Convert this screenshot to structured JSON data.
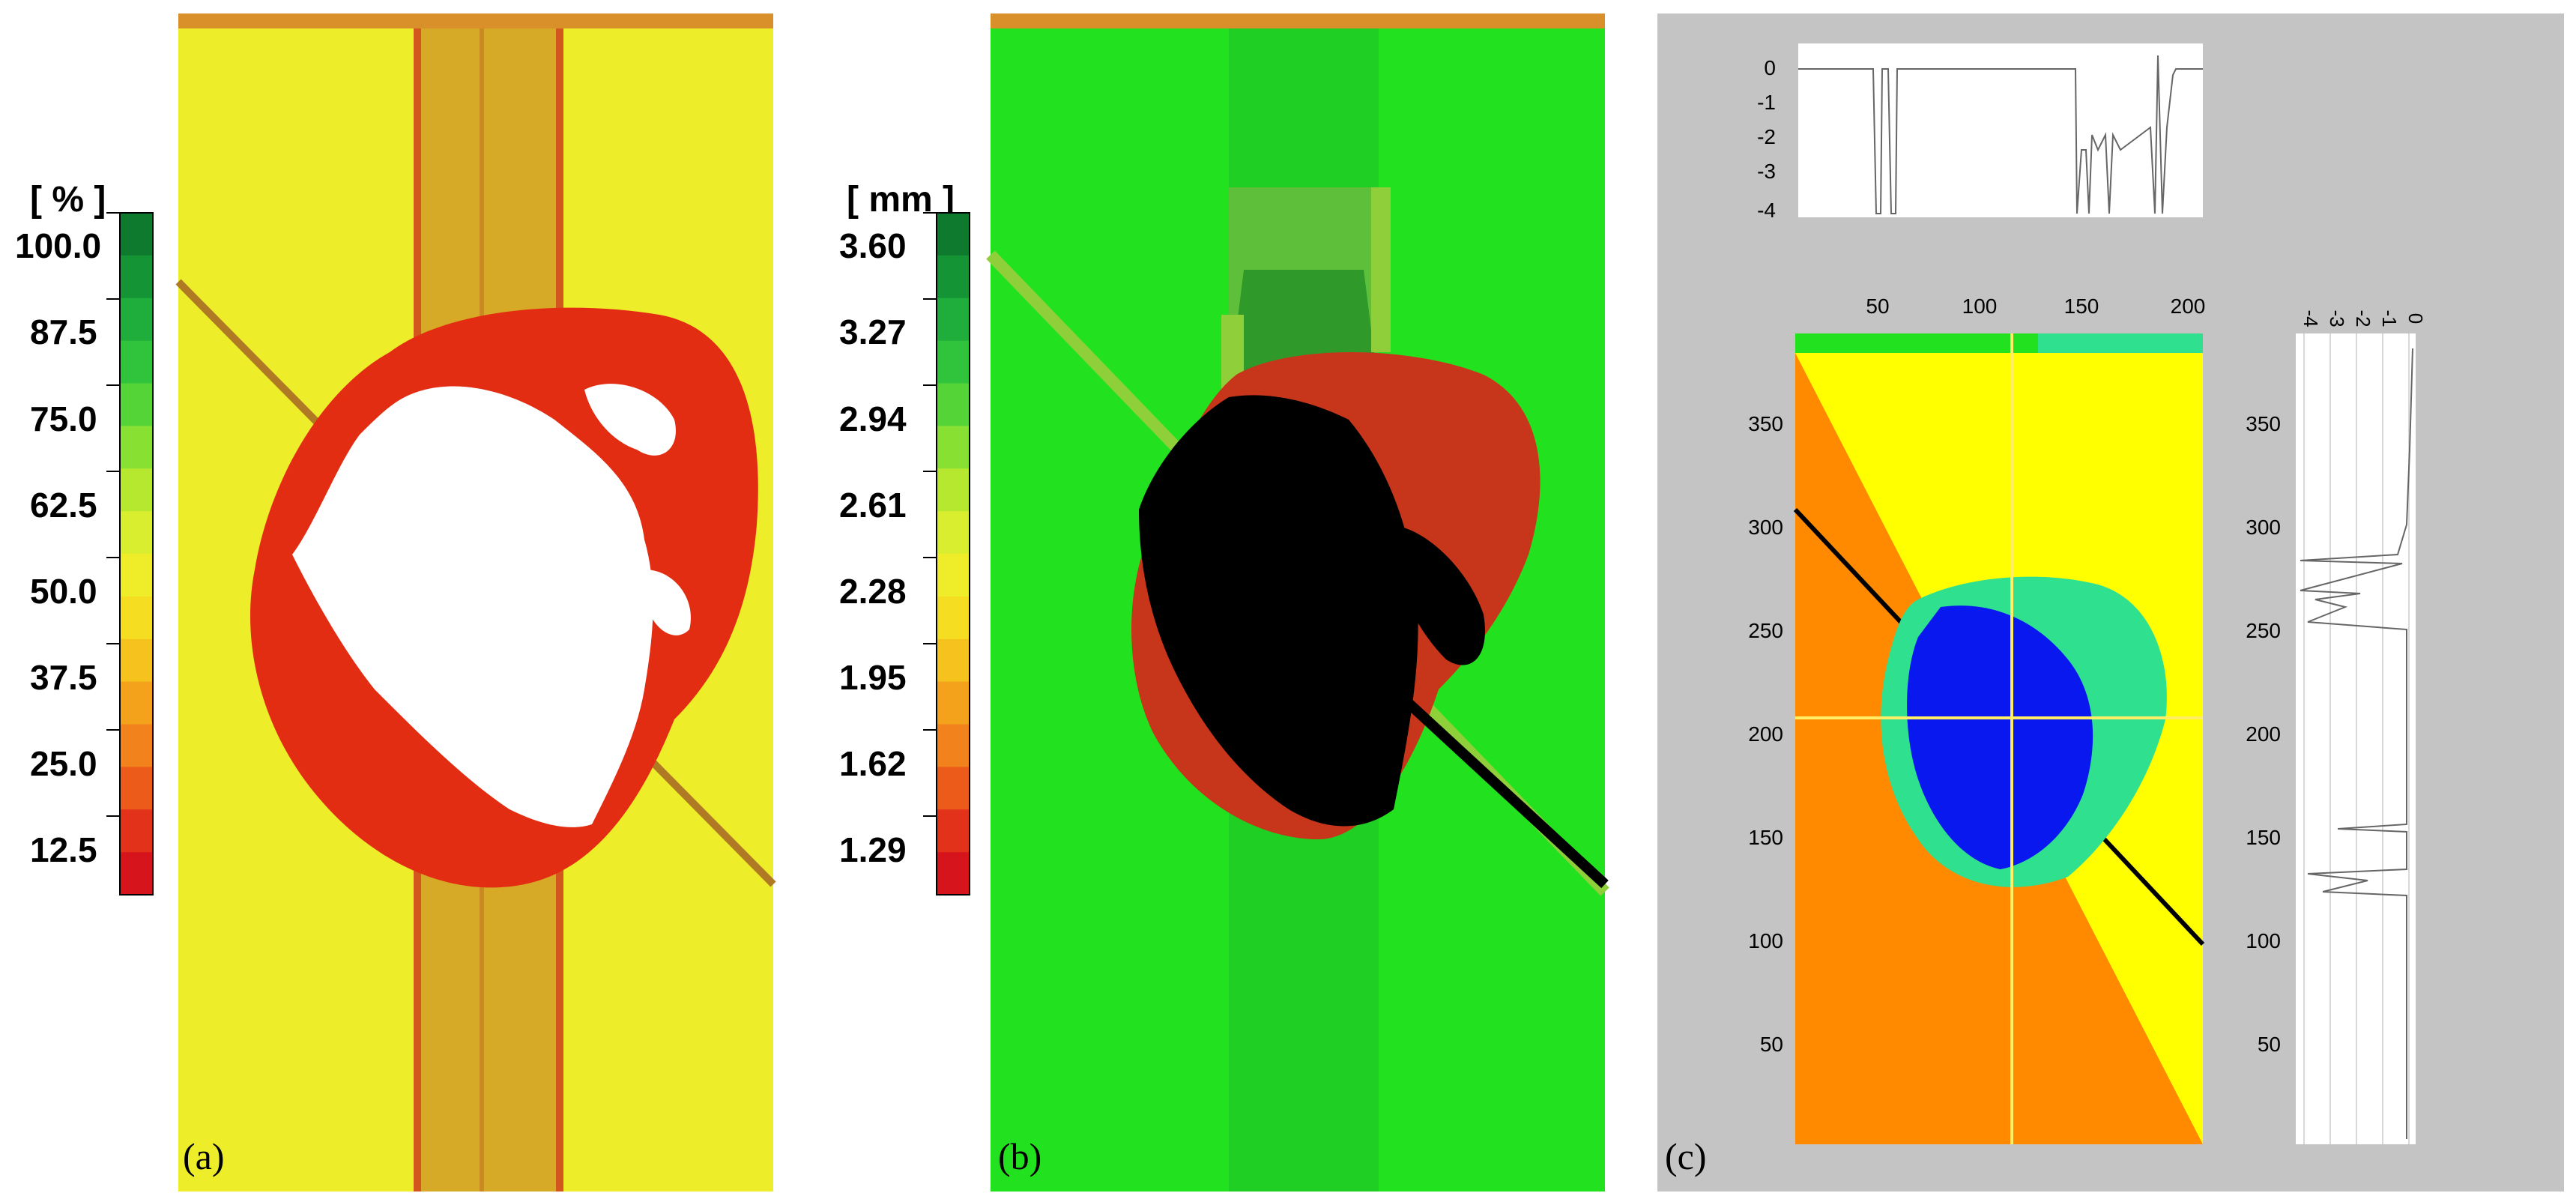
{
  "panels": {
    "a": {
      "label": "(a)",
      "unit": "[ % ]",
      "ticks": [
        "100.0",
        "87.5",
        "75.0",
        "62.5",
        "50.0",
        "37.5",
        "25.0",
        "12.5"
      ],
      "colors": {
        "background": "#eded2a",
        "band": "#d6a926",
        "damage": "#e32d12",
        "center": "#ffffff",
        "scale": [
          "#d6141b",
          "#e2321a",
          "#ec5b1a",
          "#f2821b",
          "#f4a11c",
          "#f6c21e",
          "#f5dd22",
          "#efed2a",
          "#d8ee2e",
          "#b6e830",
          "#88e032",
          "#55d437",
          "#2fc43b",
          "#1fad3c",
          "#159436",
          "#0d7a2d"
        ]
      }
    },
    "b": {
      "label": "(b)",
      "unit": "[ mm ]",
      "ticks": [
        "3.60",
        "3.27",
        "2.94",
        "2.61",
        "2.28",
        "1.95",
        "1.62",
        "1.29"
      ],
      "colors": {
        "background": "#22e21f",
        "band_light": "#8fd03a",
        "band_dark": "#2f9a2a",
        "damage": "#c7361a",
        "core": "#000000"
      }
    },
    "c": {
      "label": "(c)",
      "colors": {
        "panel_bg": "#c4c4c4",
        "orange": "#ff8a00",
        "yellow": "#ffff00",
        "teal": "#2fe08f",
        "blue": "#0a18f0",
        "crosshair": "#ffee66",
        "profile_line": "#666666"
      },
      "top_profile": {
        "y_ticks": [
          "0",
          "-1",
          "-2",
          "-3",
          "-4"
        ]
      },
      "main_map": {
        "x_ticks": [
          "50",
          "100",
          "150",
          "200"
        ],
        "y_ticks": [
          "350",
          "300",
          "250",
          "200",
          "150",
          "100",
          "50"
        ]
      },
      "side_profile": {
        "x_ticks": [
          "-4",
          "-3",
          "-2",
          "-1",
          "0"
        ],
        "y_ticks": [
          "350",
          "300",
          "250",
          "200",
          "150",
          "100",
          "50"
        ]
      }
    }
  }
}
